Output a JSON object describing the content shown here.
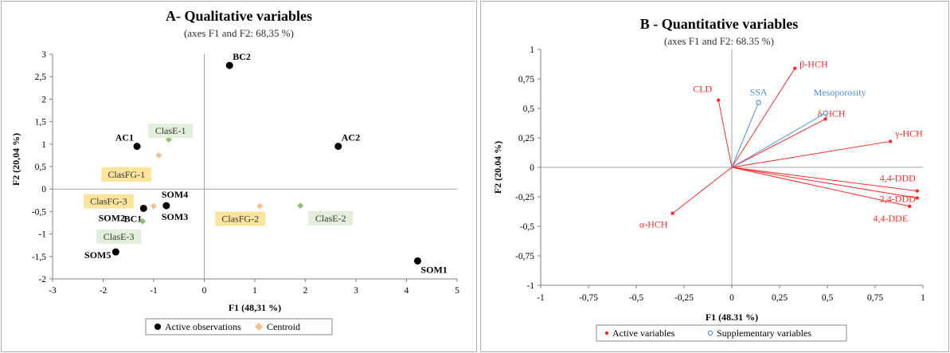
{
  "colors": {
    "observation": "#000000",
    "centroid": "#f4c18a",
    "clasE_fill": "#e2efda",
    "clasE_marker": "#8fbf6f",
    "clasFG_fill": "#fde49c",
    "active_var": "#ff2a2a",
    "supp_var": "#4a90e2"
  },
  "chart_data": [
    {
      "type": "scatter",
      "title": "A- Qualitative variables",
      "subtitle": "(axes F1 and F2: 68,35 %)",
      "xlabel": "F1 (48,31 %)",
      "ylabel": "F2 (20,04 %)",
      "xlim": [
        -3,
        5
      ],
      "ylim": [
        -2,
        3
      ],
      "xticks": [
        "-3",
        "-2",
        "-1",
        "0",
        "1",
        "2",
        "3",
        "4",
        "5"
      ],
      "yticks": [
        "-2",
        "-1,5",
        "-1",
        "-0,5",
        "0",
        "0,5",
        "1",
        "1,5",
        "2",
        "2,5",
        "3"
      ],
      "legend_position": "bottom",
      "series": [
        {
          "name": "Active observations",
          "marker": "circle",
          "points": [
            {
              "label": "BC2",
              "x": 0.5,
              "y": 2.75
            },
            {
              "label": "AC1",
              "x": -1.33,
              "y": 0.95
            },
            {
              "label": "AC2",
              "x": 2.65,
              "y": 0.95
            },
            {
              "label": "SOM4",
              "x": -0.75,
              "y": -0.37
            },
            {
              "label": "BC1",
              "x": -1.2,
              "y": -0.43
            },
            {
              "label": "SOM2",
              "x": -1.2,
              "y": -0.43
            },
            {
              "label": "SOM3",
              "x": -0.75,
              "y": -0.37
            },
            {
              "label": "SOM5",
              "x": -1.75,
              "y": -1.4
            },
            {
              "label": "SOM1",
              "x": 4.22,
              "y": -1.6
            }
          ]
        },
        {
          "name": "Centroid",
          "marker": "diamond",
          "points": [
            {
              "label": "ClasE-1",
              "x": -0.7,
              "y": 1.1,
              "group": "E"
            },
            {
              "label": "ClasFG-1",
              "x": -0.9,
              "y": 0.75,
              "group": "FG"
            },
            {
              "label": "ClasFG-3",
              "x": -1.0,
              "y": -0.38,
              "group": "FG"
            },
            {
              "label": "ClasE-3",
              "x": -1.22,
              "y": -0.72,
              "group": "E"
            },
            {
              "label": "ClasFG-2",
              "x": 1.1,
              "y": -0.38,
              "group": "FG"
            },
            {
              "label": "ClasE-2",
              "x": 1.9,
              "y": -0.37,
              "group": "E"
            }
          ]
        }
      ]
    },
    {
      "type": "scatter",
      "title": "B - Quantitative variables",
      "subtitle": "(axes F1 and F2: 68.35 %)",
      "xlabel": "F1 (48.31 %)",
      "ylabel": "F2 (20.04 %)",
      "xlim": [
        -1,
        1
      ],
      "ylim": [
        -1,
        1
      ],
      "xticks": [
        "-1",
        "-0,75",
        "-0,5",
        "-0,25",
        "0",
        "0,25",
        "0,5",
        "0,75",
        "1"
      ],
      "yticks": [
        "-1",
        "-0,75",
        "-0,5",
        "-0,25",
        "0",
        "0,25",
        "0,5",
        "0,75",
        "1"
      ],
      "legend_position": "bottom",
      "series": [
        {
          "name": "Active variables",
          "marker": "dot",
          "vectors": [
            {
              "label": "CLD",
              "x": -0.07,
              "y": 0.57
            },
            {
              "label": "β-HCH",
              "x": 0.33,
              "y": 0.84
            },
            {
              "label": "δ-HCH",
              "x": 0.49,
              "y": 0.41
            },
            {
              "label": "γ-HCH",
              "x": 0.83,
              "y": 0.22
            },
            {
              "label": "4,4-DDD",
              "x": 0.97,
              "y": -0.2
            },
            {
              "label": "2,4-DDD",
              "x": 0.97,
              "y": -0.26
            },
            {
              "label": "4,4-DDE",
              "x": 0.93,
              "y": -0.33
            },
            {
              "label": "α-HCH",
              "x": -0.31,
              "y": -0.39
            }
          ]
        },
        {
          "name": "Supplementary variables",
          "marker": "open-circle",
          "vectors": [
            {
              "label": "SSA",
              "x": 0.14,
              "y": 0.55
            },
            {
              "label": "Mesoporosity",
              "x": 0.49,
              "y": 0.46
            }
          ]
        }
      ]
    }
  ]
}
